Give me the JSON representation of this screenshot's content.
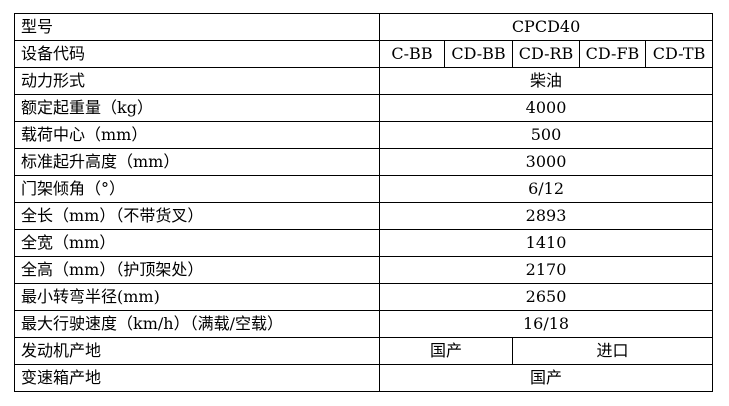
{
  "rows": [
    {
      "label": "型号",
      "value": "CPCD40"
    },
    {
      "label": "设备代码",
      "codes": [
        "C-BB",
        "CD-BB",
        "CD-RB",
        "CD-FB",
        "CD-TB"
      ]
    },
    {
      "label": "动力形式",
      "value": "柴油"
    },
    {
      "label": "额定起重量（kg）",
      "value": "4000"
    },
    {
      "label": "载荷中心（mm）",
      "value": "500"
    },
    {
      "label": "标准起升高度（mm）",
      "value": "3000"
    },
    {
      "label": "门架倾角（°）",
      "value": "6/12"
    },
    {
      "label": "全长（mm）（不带货叉）",
      "value": "2893"
    },
    {
      "label": "全宽（mm）",
      "value": "1410"
    },
    {
      "label": "全高（mm）（护顶架处）",
      "value": "2170"
    },
    {
      "label": "最小转弯半径(mm)",
      "value": "2650"
    },
    {
      "label": "最大行驶速度（km/h）（满载/空载）",
      "value": "16/18"
    },
    {
      "label": "发动机产地",
      "values": [
        "国产",
        "进口"
      ]
    },
    {
      "label": "变速箱产地",
      "value": "国产"
    }
  ]
}
